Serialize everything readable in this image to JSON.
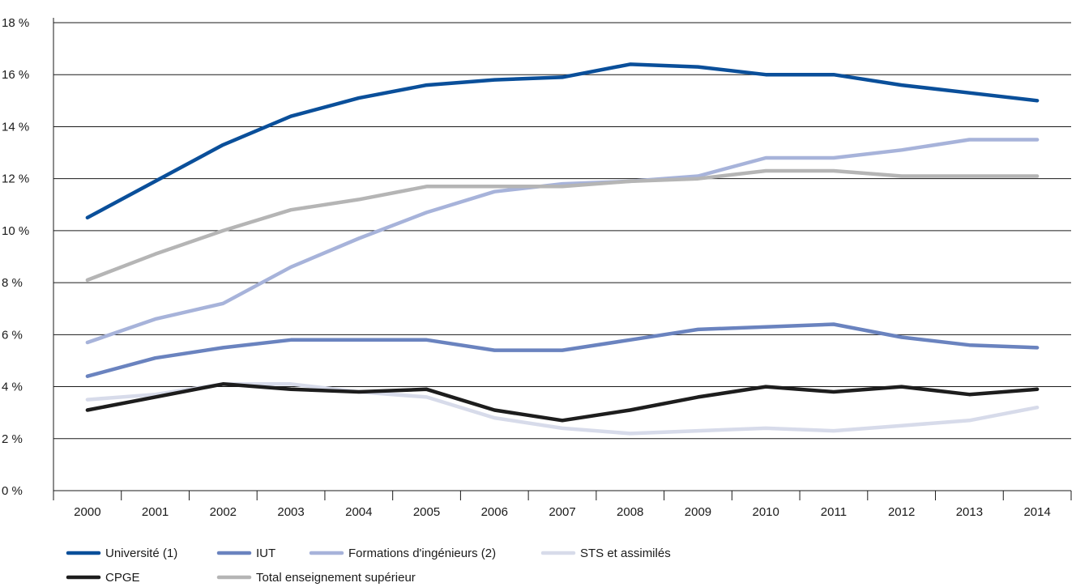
{
  "chart_data": {
    "type": "line",
    "x": [
      "2000",
      "2001",
      "2002",
      "2003",
      "2004",
      "2005",
      "2006",
      "2007",
      "2008",
      "2009",
      "2010",
      "2011",
      "2012",
      "2013",
      "2014"
    ],
    "ylim": [
      0,
      18
    ],
    "yticks": [
      0,
      2,
      4,
      6,
      8,
      10,
      12,
      14,
      16,
      18
    ],
    "ytick_labels": [
      "0 %",
      "2 %",
      "4 %",
      "6 %",
      "8 %",
      "10 %",
      "12 %",
      "14 %",
      "16 %",
      "18 %"
    ],
    "grid": true,
    "legend_position": "bottom",
    "series": [
      {
        "name": "Université (1)",
        "color": "#0a4f9a",
        "values": [
          10.5,
          11.9,
          13.3,
          14.4,
          15.1,
          15.6,
          15.8,
          15.9,
          16.4,
          16.3,
          16.0,
          16.0,
          15.6,
          15.3,
          15.0
        ]
      },
      {
        "name": "IUT",
        "color": "#6a83bf",
        "values": [
          4.4,
          5.1,
          5.5,
          5.8,
          5.8,
          5.8,
          5.4,
          5.4,
          5.8,
          6.2,
          6.3,
          6.4,
          5.9,
          5.6,
          5.5
        ]
      },
      {
        "name": "Formations d'ingénieurs (2)",
        "color": "#a7b3da",
        "values": [
          5.7,
          6.6,
          7.2,
          8.6,
          9.7,
          10.7,
          11.5,
          11.8,
          11.9,
          12.1,
          12.8,
          12.8,
          13.1,
          13.5,
          13.5
        ]
      },
      {
        "name": "STS et assimilés",
        "color": "#d7dbea",
        "values": [
          3.5,
          3.7,
          4.1,
          4.1,
          3.8,
          3.6,
          2.8,
          2.4,
          2.2,
          2.3,
          2.4,
          2.3,
          2.5,
          2.7,
          3.2
        ]
      },
      {
        "name": "CPGE",
        "color": "#1d1d1d",
        "values": [
          3.1,
          3.6,
          4.1,
          3.9,
          3.8,
          3.9,
          3.1,
          2.7,
          3.1,
          3.6,
          4.0,
          3.8,
          4.0,
          3.7,
          3.9
        ]
      },
      {
        "name": "Total enseignement supérieur",
        "color": "#b5b5b5",
        "values": [
          8.1,
          9.1,
          10.0,
          10.8,
          11.2,
          11.7,
          11.7,
          11.7,
          11.9,
          12.0,
          12.3,
          12.3,
          12.1,
          12.1,
          12.1
        ]
      }
    ]
  }
}
